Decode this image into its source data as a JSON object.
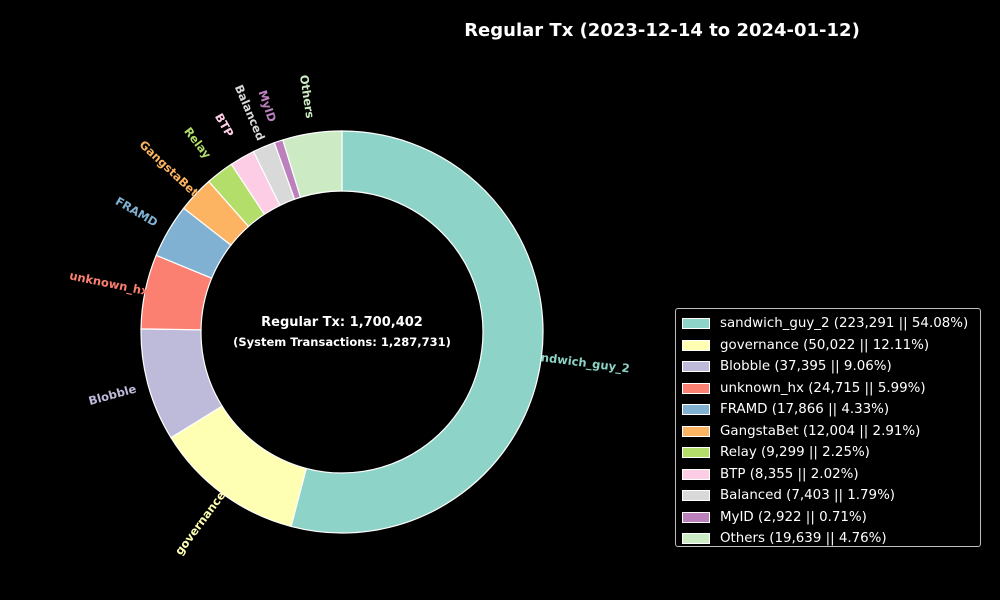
{
  "chart_data": {
    "type": "pie",
    "style": "donut",
    "title": "Regular Tx (2023-12-14 to 2024-01-12)",
    "center_text": {
      "main": "Regular Tx: 1,700,402",
      "sub": "(System Transactions: 1,287,731)"
    },
    "start_angle": 90,
    "direction": "clockwise",
    "legend_placement": "right",
    "slices": [
      {
        "label": "sandwich_guy_2",
        "value": 223291,
        "percent": "54.08%",
        "legend": "sandwich_guy_2 (223,291 || 54.08%)",
        "color": "#8dd3c7"
      },
      {
        "label": "governance",
        "value": 50022,
        "percent": "12.11%",
        "legend": "governance (50,022 || 12.11%)",
        "color": "#ffffb3"
      },
      {
        "label": "Blobble",
        "value": 37395,
        "percent": "9.06%",
        "legend": "Blobble (37,395 || 9.06%)",
        "color": "#bebada"
      },
      {
        "label": "unknown_hx",
        "value": 24715,
        "percent": "5.99%",
        "legend": "unknown_hx (24,715 || 5.99%)",
        "color": "#fb8072"
      },
      {
        "label": "FRAMD",
        "value": 17866,
        "percent": "4.33%",
        "legend": "FRAMD (17,866 || 4.33%)",
        "color": "#80b1d3"
      },
      {
        "label": "GangstaBet",
        "value": 12004,
        "percent": "2.91%",
        "legend": "GangstaBet (12,004 || 2.91%)",
        "color": "#fdb462"
      },
      {
        "label": "Relay",
        "value": 9299,
        "percent": "2.25%",
        "legend": "Relay (9,299 || 2.25%)",
        "color": "#b3de69"
      },
      {
        "label": "BTP",
        "value": 8355,
        "percent": "2.02%",
        "legend": "BTP (8,355 || 2.02%)",
        "color": "#fccde5"
      },
      {
        "label": "Balanced",
        "value": 7403,
        "percent": "1.79%",
        "legend": "Balanced (7,403 || 1.79%)",
        "color": "#d9d9d9"
      },
      {
        "label": "MyID",
        "value": 2922,
        "percent": "0.71%",
        "legend": "MyID (2,922 || 0.71%)",
        "color": "#bc80bd"
      },
      {
        "label": "Others",
        "value": 19639,
        "percent": "4.76%",
        "legend": "Others (19,639 || 4.76%)",
        "color": "#ccebc5"
      }
    ]
  }
}
